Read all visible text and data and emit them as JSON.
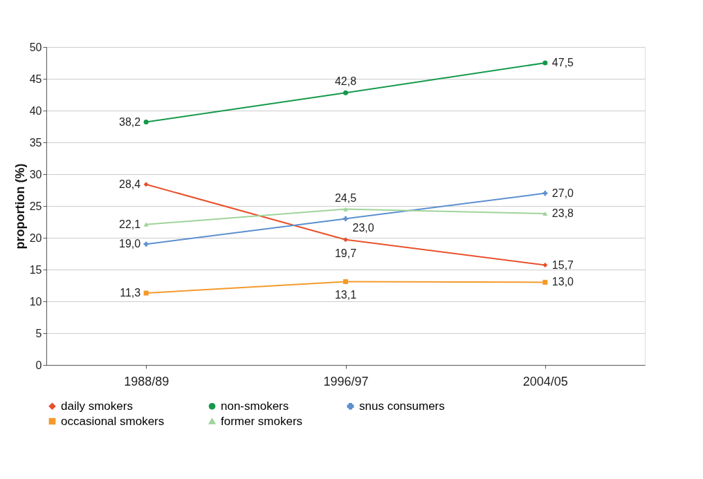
{
  "chart_data": {
    "type": "line",
    "ylabel": "proportion (%)",
    "categories": [
      "1988/89",
      "1996/97",
      "2004/05"
    ],
    "ylim": [
      0,
      50
    ],
    "yticks": [
      0,
      5,
      10,
      15,
      20,
      25,
      30,
      35,
      40,
      45,
      50
    ],
    "grid": "y",
    "legend": "bottom",
    "series": [
      {
        "name": "daily smokers",
        "color": "#e8502a",
        "marker": "diamond",
        "values": [
          28.4,
          19.7,
          15.7
        ],
        "value_labels": [
          "28,4",
          "19,7",
          "15,7"
        ]
      },
      {
        "name": "non-smokers",
        "color": "#14994a",
        "marker": "circle",
        "values": [
          38.2,
          42.8,
          47.5
        ],
        "value_labels": [
          "38,2",
          "42,8",
          "47,5"
        ]
      },
      {
        "name": "snus consumers",
        "color": "#5b8fd0",
        "marker": "cross",
        "values": [
          19.0,
          23.0,
          27.0
        ],
        "value_labels": [
          "19,0",
          "23,0",
          "27,0"
        ]
      },
      {
        "name": "occasional smokers",
        "color": "#f39a2b",
        "marker": "square",
        "values": [
          11.3,
          13.1,
          13.0
        ],
        "value_labels": [
          "11,3",
          "13,1",
          "13,0"
        ]
      },
      {
        "name": "former smokers",
        "color": "#9fd39a",
        "marker": "triangle",
        "values": [
          22.1,
          24.5,
          23.8
        ],
        "value_labels": [
          "22,1",
          "24,5",
          "23,8"
        ]
      }
    ]
  }
}
